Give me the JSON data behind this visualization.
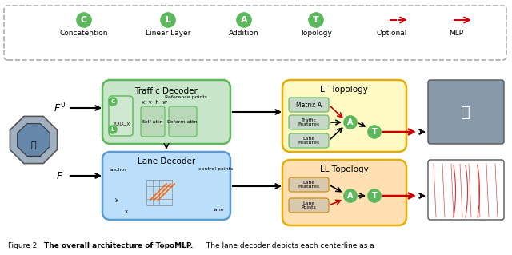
{
  "title": "Figure 2: The overall architecture of TopoMLP. The lane decoder depicts each centerline as a",
  "legend_items": [
    {
      "label": "Concatention",
      "symbol": "C",
      "color": "#5cb85c"
    },
    {
      "label": "Linear Layer",
      "symbol": "L",
      "color": "#5cb85c"
    },
    {
      "label": "Addition",
      "symbol": "A",
      "color": "#5cb85c"
    },
    {
      "label": "Topology",
      "symbol": "T",
      "color": "#5cb85c"
    },
    {
      "label": "Optional",
      "symbol": "dashed_arrow",
      "color": "#cc0000"
    },
    {
      "label": "MLP",
      "symbol": "solid_arrow",
      "color": "#cc0000"
    }
  ],
  "bg_color": "#ffffff",
  "legend_box_color": "#f0f0f0",
  "traffic_decoder_color": "#c8e6c9",
  "traffic_decoder_border": "#5cb85c",
  "lane_decoder_color": "#bbdefb",
  "lane_decoder_border": "#5b9bd5",
  "lt_topology_color": "#fff9c4",
  "lt_topology_border": "#e6ac00",
  "ll_topology_color": "#ffe0b2",
  "ll_topology_border": "#e6ac00",
  "node_color": "#5cb85c",
  "node_text_color": "#ffffff"
}
